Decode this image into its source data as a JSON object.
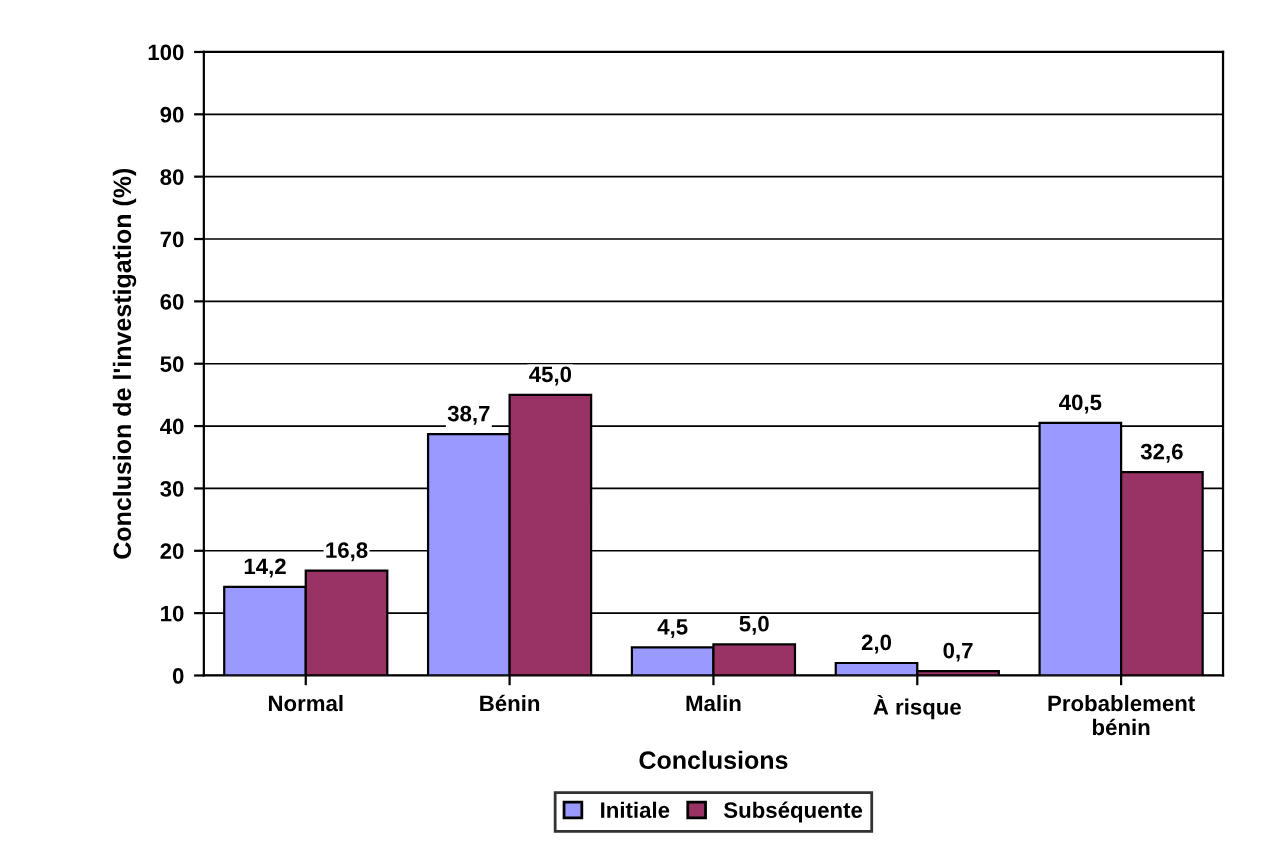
{
  "chart_data": {
    "type": "bar",
    "xlabel": "Conclusions",
    "ylabel": "Conclusion de l'investigation (%)",
    "categories": [
      "Normal",
      "Bénin",
      "Malin",
      "À risque",
      "Probablement\nbénin"
    ],
    "series": [
      {
        "name": "Initiale",
        "color": "#9999ff",
        "values": [
          14.2,
          38.7,
          4.5,
          2.0,
          40.5
        ],
        "value_labels": [
          "14,2",
          "38,7",
          "4,5",
          "2,0",
          "40,5"
        ]
      },
      {
        "name": "Subséquente",
        "color": "#993366",
        "values": [
          16.8,
          45.0,
          5.0,
          0.7,
          32.6
        ],
        "value_labels": [
          "16,8",
          "45,0",
          "5,0",
          "0,7",
          "32,6"
        ]
      }
    ],
    "ylim": [
      0,
      100
    ],
    "yticks": [
      0,
      10,
      20,
      30,
      40,
      50,
      60,
      70,
      80,
      90,
      100
    ],
    "grid": "y",
    "legend": "bottom"
  }
}
